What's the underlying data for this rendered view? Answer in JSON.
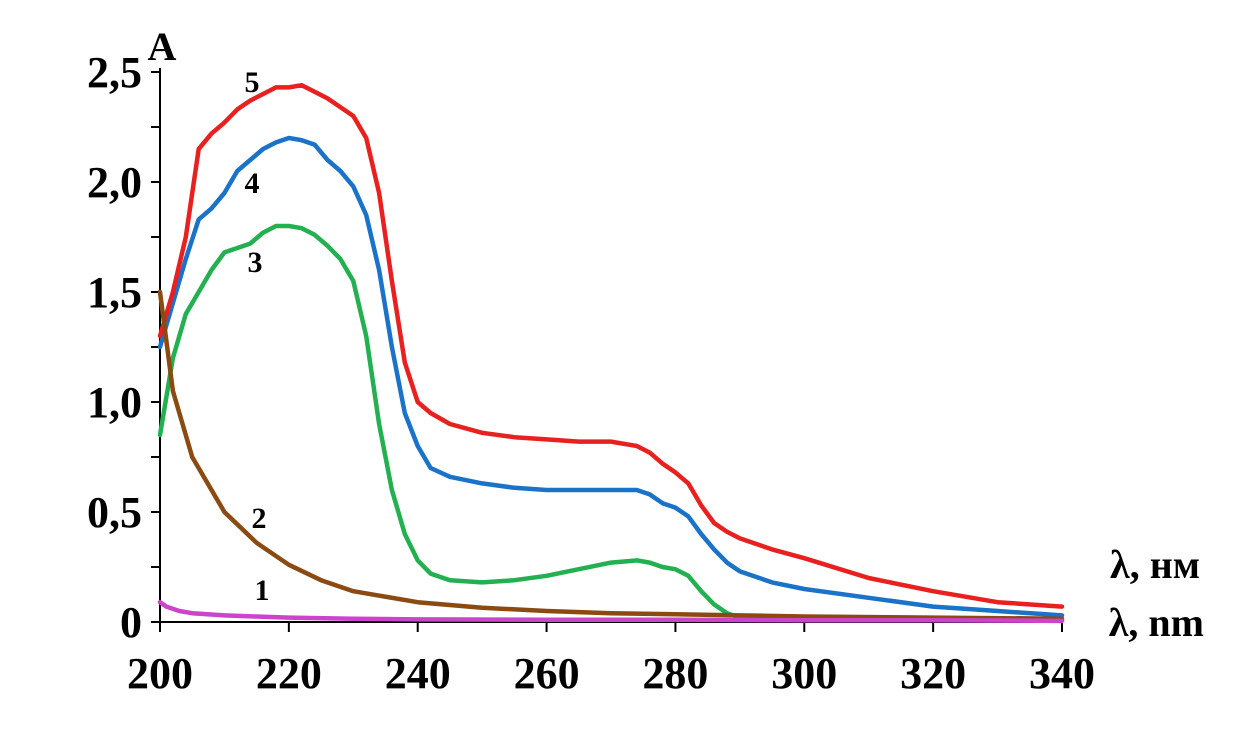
{
  "chart_data": {
    "type": "line",
    "ylabel": "A",
    "xlabel_ru": "λ, нм",
    "xlabel_en": "λ, nm",
    "xlim": [
      200,
      340
    ],
    "ylim": [
      0,
      2.5
    ],
    "x_ticks": [
      "200",
      "220",
      "240",
      "260",
      "280",
      "300",
      "320",
      "340"
    ],
    "y_ticks": [
      "0",
      "0,5",
      "1,0",
      "1,5",
      "2,0",
      "2,5"
    ],
    "grid": false,
    "series": [
      {
        "name": "1",
        "color": "#cc44cc",
        "x": [
          200,
          201,
          203,
          205,
          210,
          215,
          220,
          230,
          240,
          260,
          280,
          300,
          320,
          340
        ],
        "y": [
          0.09,
          0.07,
          0.05,
          0.04,
          0.03,
          0.025,
          0.02,
          0.015,
          0.012,
          0.01,
          0.01,
          0.008,
          0.008,
          0.005
        ]
      },
      {
        "name": "2",
        "color": "#8b4a12",
        "x": [
          200,
          202,
          205,
          210,
          215,
          220,
          225,
          230,
          240,
          250,
          260,
          270,
          280,
          290,
          300,
          320,
          340
        ],
        "y": [
          1.5,
          1.05,
          0.75,
          0.5,
          0.36,
          0.26,
          0.19,
          0.14,
          0.09,
          0.065,
          0.05,
          0.04,
          0.035,
          0.03,
          0.025,
          0.02,
          0.015
        ]
      },
      {
        "name": "3",
        "color": "#22b050",
        "x": [
          200,
          202,
          204,
          206,
          208,
          210,
          212,
          214,
          216,
          218,
          220,
          222,
          224,
          226,
          228,
          230,
          232,
          234,
          236,
          238,
          240,
          242,
          245,
          250,
          255,
          260,
          265,
          270,
          274,
          276,
          278,
          280,
          282,
          284,
          286,
          288,
          290,
          300,
          340
        ],
        "y": [
          0.85,
          1.2,
          1.4,
          1.5,
          1.6,
          1.68,
          1.7,
          1.72,
          1.77,
          1.8,
          1.8,
          1.79,
          1.76,
          1.71,
          1.65,
          1.55,
          1.3,
          0.9,
          0.6,
          0.4,
          0.28,
          0.22,
          0.19,
          0.18,
          0.19,
          0.21,
          0.24,
          0.27,
          0.28,
          0.27,
          0.25,
          0.24,
          0.21,
          0.14,
          0.08,
          0.04,
          0.02,
          0.015,
          0.01
        ]
      },
      {
        "name": "4",
        "color": "#1a73c8",
        "x": [
          200,
          202,
          204,
          206,
          208,
          210,
          212,
          214,
          216,
          218,
          220,
          222,
          224,
          226,
          228,
          230,
          232,
          234,
          236,
          238,
          240,
          242,
          245,
          250,
          255,
          260,
          265,
          270,
          274,
          276,
          278,
          280,
          282,
          284,
          286,
          288,
          290,
          295,
          300,
          310,
          320,
          330,
          340
        ],
        "y": [
          1.25,
          1.45,
          1.65,
          1.83,
          1.88,
          1.95,
          2.05,
          2.1,
          2.15,
          2.18,
          2.2,
          2.19,
          2.17,
          2.1,
          2.05,
          1.98,
          1.85,
          1.6,
          1.25,
          0.95,
          0.8,
          0.7,
          0.66,
          0.63,
          0.61,
          0.6,
          0.6,
          0.6,
          0.6,
          0.58,
          0.54,
          0.52,
          0.48,
          0.4,
          0.33,
          0.27,
          0.23,
          0.18,
          0.15,
          0.11,
          0.07,
          0.05,
          0.03
        ]
      },
      {
        "name": "5",
        "color": "#e82020",
        "x": [
          200,
          202,
          204,
          206,
          208,
          210,
          212,
          214,
          216,
          218,
          220,
          222,
          224,
          226,
          228,
          230,
          232,
          234,
          236,
          238,
          240,
          242,
          245,
          250,
          255,
          260,
          265,
          270,
          274,
          276,
          278,
          280,
          282,
          284,
          286,
          288,
          290,
          295,
          300,
          310,
          320,
          330,
          340
        ],
        "y": [
          1.3,
          1.5,
          1.75,
          2.15,
          2.22,
          2.27,
          2.33,
          2.37,
          2.4,
          2.43,
          2.43,
          2.44,
          2.41,
          2.38,
          2.34,
          2.3,
          2.2,
          1.95,
          1.55,
          1.18,
          1.0,
          0.95,
          0.9,
          0.86,
          0.84,
          0.83,
          0.82,
          0.82,
          0.8,
          0.77,
          0.72,
          0.68,
          0.63,
          0.53,
          0.45,
          0.41,
          0.38,
          0.33,
          0.29,
          0.2,
          0.14,
          0.09,
          0.07
        ]
      }
    ]
  }
}
